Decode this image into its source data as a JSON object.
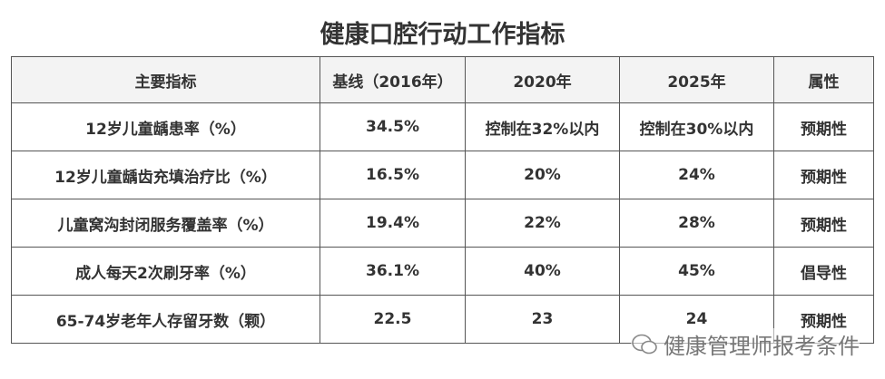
{
  "header": {
    "title": "健康口腔行动工作指标"
  },
  "table": {
    "columns": [
      "主要指标",
      "基线（2016年）",
      "2020年",
      "2025年",
      "属性"
    ],
    "rows": [
      [
        "12岁儿童龋患率（%）",
        "34.5%",
        "控制在32%以内",
        "控制在30%以内",
        "预期性"
      ],
      [
        "12岁儿童龋齿充填治疗比（%）",
        "16.5%",
        "20%",
        "24%",
        "预期性"
      ],
      [
        "儿童窝沟封闭服务覆盖率（%）",
        "19.4%",
        "22%",
        "28%",
        "预期性"
      ],
      [
        "成人每天2次刷牙率（%）",
        "36.1%",
        "40%",
        "45%",
        "倡导性"
      ],
      [
        "65-74岁老年人存留牙数（颗）",
        "22.5",
        "23",
        "24",
        "预期性"
      ]
    ]
  },
  "watermark": {
    "text": "健康管理师报考条件"
  }
}
